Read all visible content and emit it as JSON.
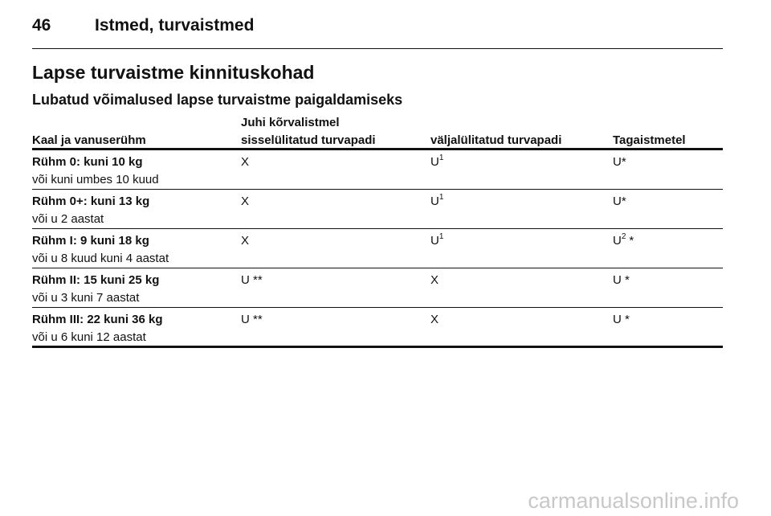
{
  "header": {
    "page_number": "46",
    "section": "Istmed, turvaistmed"
  },
  "title": "Lapse turvaistme kinnituskohad",
  "subtitle": "Lubatud võimalused lapse turvaistme paigaldamiseks",
  "table": {
    "group_header": "Juhi kõrvalistmel",
    "columns": [
      "Kaal ja vanuserühm",
      "sisselülitatud turvapadi",
      "väljalülitatud turvapadi",
      "Tagaistmetel"
    ],
    "rows": [
      {
        "group": "Rühm 0: kuni 10 kg",
        "age": "või kuni umbes 10 kuud",
        "cells": [
          {
            "text": "X"
          },
          {
            "text": "U",
            "sup": "1"
          },
          {
            "text": "U*"
          }
        ]
      },
      {
        "group": "Rühm 0+: kuni 13 kg",
        "age": "või u 2 aastat",
        "cells": [
          {
            "text": "X"
          },
          {
            "text": "U",
            "sup": "1"
          },
          {
            "text": "U*"
          }
        ]
      },
      {
        "group": "Rühm I: 9 kuni 18 kg",
        "age": "või u 8 kuud kuni 4 aastat",
        "cells": [
          {
            "text": "X"
          },
          {
            "text": "U",
            "sup": "1"
          },
          {
            "text": "U",
            "sup": "2",
            "suffix": "*"
          }
        ]
      },
      {
        "group": "Rühm II: 15 kuni 25 kg",
        "age": "või u 3 kuni 7 aastat",
        "cells": [
          {
            "text": "U **"
          },
          {
            "text": "X"
          },
          {
            "text": "U *"
          }
        ]
      },
      {
        "group": "Rühm III: 22 kuni 36 kg",
        "age": "või u 6 kuni 12 aastat",
        "cells": [
          {
            "text": "U **"
          },
          {
            "text": "X"
          },
          {
            "text": "U *"
          }
        ]
      }
    ]
  },
  "watermark": "carmanualsonline.info"
}
